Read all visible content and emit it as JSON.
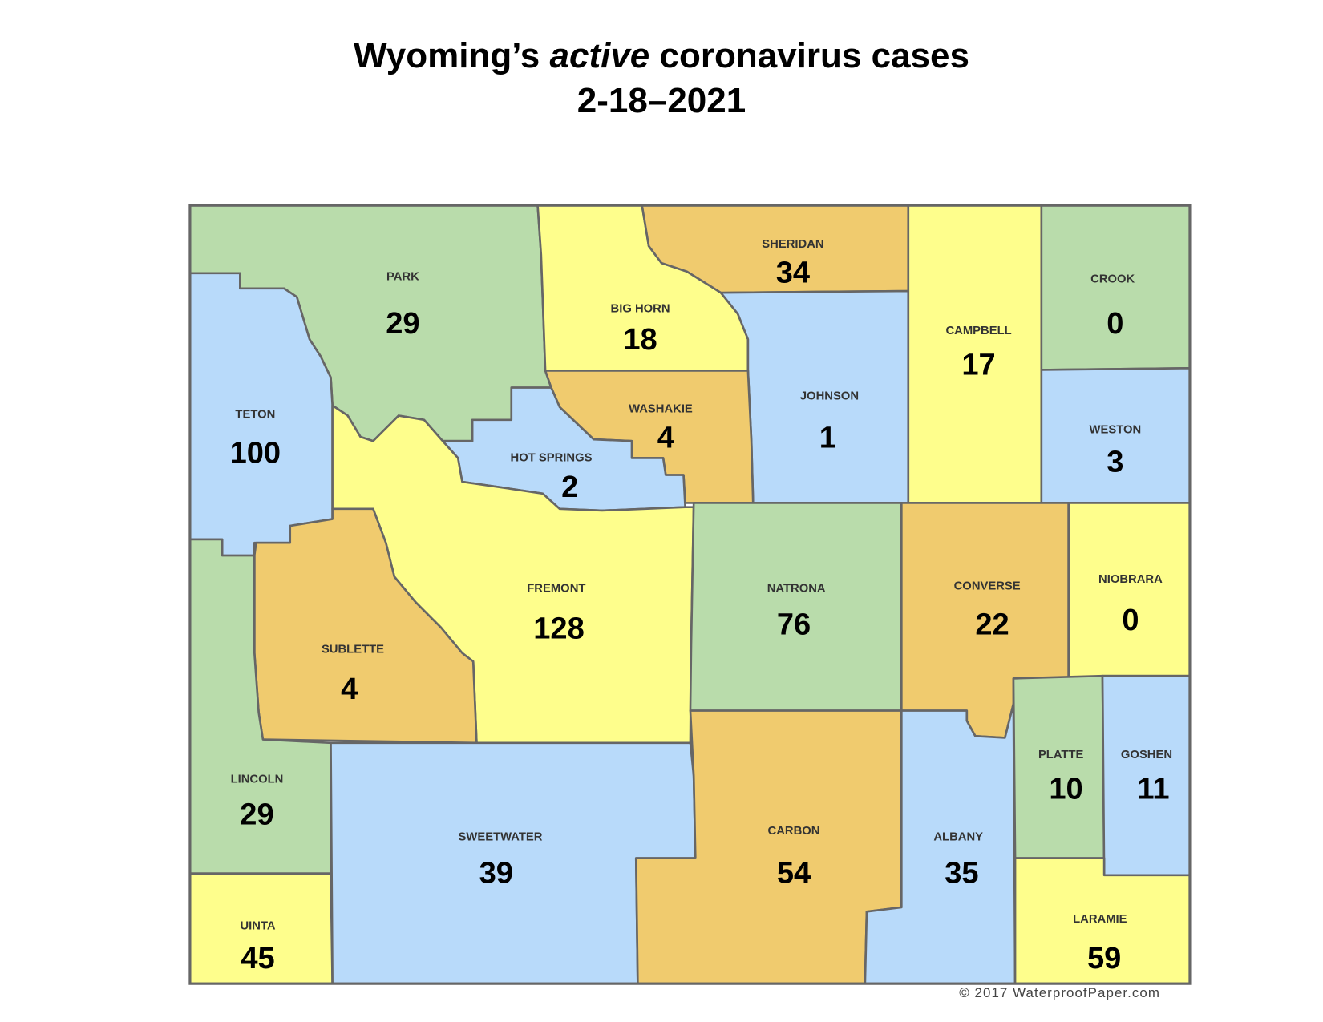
{
  "title": {
    "line1_pre": "Wyoming’s ",
    "line1_em": "active",
    "line1_post": " coronavirus cases",
    "line2": "2-18–2021"
  },
  "colors": {
    "green": "#b9dcab",
    "blue": "#b8dafa",
    "yellow": "#fefe8c",
    "orange": "#f0cb6e",
    "border": "#666666"
  },
  "counties": {
    "park": {
      "name": "PARK",
      "cases": "29",
      "color": "green"
    },
    "teton": {
      "name": "TETON",
      "cases": "100",
      "color": "blue"
    },
    "big_horn": {
      "name": "BIG HORN",
      "cases": "18",
      "color": "yellow"
    },
    "sheridan": {
      "name": "SHERIDAN",
      "cases": "34",
      "color": "orange"
    },
    "johnson": {
      "name": "JOHNSON",
      "cases": "1",
      "color": "blue"
    },
    "campbell": {
      "name": "CAMPBELL",
      "cases": "17",
      "color": "yellow"
    },
    "crook": {
      "name": "CROOK",
      "cases": "0",
      "color": "green"
    },
    "weston": {
      "name": "WESTON",
      "cases": "3",
      "color": "blue"
    },
    "washakie": {
      "name": "WASHAKIE",
      "cases": "4",
      "color": "orange"
    },
    "hot_springs": {
      "name": "HOT SPRINGS",
      "cases": "2",
      "color": "blue"
    },
    "fremont": {
      "name": "FREMONT",
      "cases": "128",
      "color": "yellow"
    },
    "sublette": {
      "name": "SUBLETTE",
      "cases": "4",
      "color": "orange"
    },
    "lincoln": {
      "name": "LINCOLN",
      "cases": "29",
      "color": "green"
    },
    "uinta": {
      "name": "UINTA",
      "cases": "45",
      "color": "yellow"
    },
    "sweetwater": {
      "name": "SWEETWATER",
      "cases": "39",
      "color": "blue"
    },
    "natrona": {
      "name": "NATRONA",
      "cases": "76",
      "color": "green"
    },
    "carbon": {
      "name": "CARBON",
      "cases": "54",
      "color": "orange"
    },
    "converse": {
      "name": "CONVERSE",
      "cases": "22",
      "color": "orange"
    },
    "niobrara": {
      "name": "NIOBRARA",
      "cases": "0",
      "color": "yellow"
    },
    "albany": {
      "name": "ALBANY",
      "cases": "35",
      "color": "blue"
    },
    "platte": {
      "name": "PLATTE",
      "cases": "10",
      "color": "green"
    },
    "goshen": {
      "name": "GOSHEN",
      "cases": "11",
      "color": "blue"
    },
    "laramie": {
      "name": "LARAMIE",
      "cases": "59",
      "color": "yellow"
    }
  },
  "credit": "© 2017 WaterproofPaper.com"
}
